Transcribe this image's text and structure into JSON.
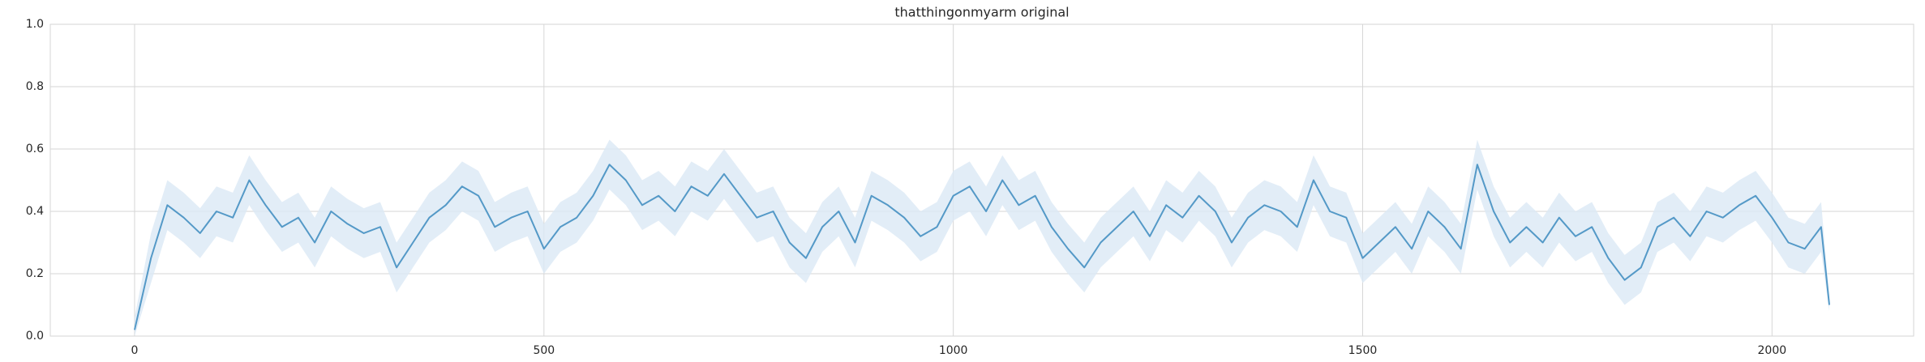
{
  "chart_data": {
    "type": "line",
    "title": "thatthingonmyarm original",
    "x": [
      0,
      20,
      40,
      60,
      80,
      100,
      120,
      140,
      160,
      180,
      200,
      220,
      240,
      260,
      280,
      300,
      320,
      340,
      360,
      380,
      400,
      420,
      440,
      460,
      480,
      500,
      520,
      540,
      560,
      580,
      600,
      620,
      640,
      660,
      680,
      700,
      720,
      740,
      760,
      780,
      800,
      820,
      840,
      860,
      880,
      900,
      920,
      940,
      960,
      980,
      1000,
      1020,
      1040,
      1060,
      1080,
      1100,
      1120,
      1140,
      1160,
      1180,
      1200,
      1220,
      1240,
      1260,
      1280,
      1300,
      1320,
      1340,
      1360,
      1380,
      1400,
      1420,
      1440,
      1460,
      1480,
      1500,
      1520,
      1540,
      1560,
      1580,
      1600,
      1620,
      1640,
      1660,
      1680,
      1700,
      1720,
      1740,
      1760,
      1780,
      1800,
      1820,
      1840,
      1860,
      1880,
      1900,
      1920,
      1940,
      1960,
      1980,
      2000,
      2020,
      2040,
      2060,
      2070
    ],
    "series": [
      {
        "color": "#5499c7",
        "band_color": "#dbe8f5",
        "values": [
          0.02,
          0.25,
          0.42,
          0.38,
          0.33,
          0.4,
          0.38,
          0.5,
          0.42,
          0.35,
          0.38,
          0.3,
          0.4,
          0.36,
          0.33,
          0.35,
          0.22,
          0.3,
          0.38,
          0.42,
          0.48,
          0.45,
          0.35,
          0.38,
          0.4,
          0.28,
          0.35,
          0.38,
          0.45,
          0.55,
          0.5,
          0.42,
          0.45,
          0.4,
          0.48,
          0.45,
          0.52,
          0.45,
          0.38,
          0.4,
          0.3,
          0.25,
          0.35,
          0.4,
          0.3,
          0.45,
          0.42,
          0.38,
          0.32,
          0.35,
          0.45,
          0.48,
          0.4,
          0.5,
          0.42,
          0.45,
          0.35,
          0.28,
          0.22,
          0.3,
          0.35,
          0.4,
          0.32,
          0.42,
          0.38,
          0.45,
          0.4,
          0.3,
          0.38,
          0.42,
          0.4,
          0.35,
          0.5,
          0.4,
          0.38,
          0.25,
          0.3,
          0.35,
          0.28,
          0.4,
          0.35,
          0.28,
          0.55,
          0.4,
          0.3,
          0.35,
          0.3,
          0.38,
          0.32,
          0.35,
          0.25,
          0.18,
          0.22,
          0.35,
          0.38,
          0.32,
          0.4,
          0.38,
          0.42,
          0.45,
          0.38,
          0.3,
          0.28,
          0.35,
          0.1
        ],
        "lower": [
          0.0,
          0.17,
          0.34,
          0.3,
          0.25,
          0.32,
          0.3,
          0.42,
          0.34,
          0.27,
          0.3,
          0.22,
          0.32,
          0.28,
          0.25,
          0.27,
          0.14,
          0.22,
          0.3,
          0.34,
          0.4,
          0.37,
          0.27,
          0.3,
          0.32,
          0.2,
          0.27,
          0.3,
          0.37,
          0.47,
          0.42,
          0.34,
          0.37,
          0.32,
          0.4,
          0.37,
          0.44,
          0.37,
          0.3,
          0.32,
          0.22,
          0.17,
          0.27,
          0.32,
          0.22,
          0.37,
          0.34,
          0.3,
          0.24,
          0.27,
          0.37,
          0.4,
          0.32,
          0.42,
          0.34,
          0.37,
          0.27,
          0.2,
          0.14,
          0.22,
          0.27,
          0.32,
          0.24,
          0.34,
          0.3,
          0.37,
          0.32,
          0.22,
          0.3,
          0.34,
          0.32,
          0.27,
          0.42,
          0.32,
          0.3,
          0.17,
          0.22,
          0.27,
          0.2,
          0.32,
          0.27,
          0.2,
          0.47,
          0.32,
          0.22,
          0.27,
          0.22,
          0.3,
          0.24,
          0.27,
          0.17,
          0.1,
          0.14,
          0.27,
          0.3,
          0.24,
          0.32,
          0.3,
          0.34,
          0.37,
          0.3,
          0.22,
          0.2,
          0.27,
          0.08
        ],
        "upper": [
          0.06,
          0.33,
          0.5,
          0.46,
          0.41,
          0.48,
          0.46,
          0.58,
          0.5,
          0.43,
          0.46,
          0.38,
          0.48,
          0.44,
          0.41,
          0.43,
          0.3,
          0.38,
          0.46,
          0.5,
          0.56,
          0.53,
          0.43,
          0.46,
          0.48,
          0.36,
          0.43,
          0.46,
          0.53,
          0.63,
          0.58,
          0.5,
          0.53,
          0.48,
          0.56,
          0.53,
          0.6,
          0.53,
          0.46,
          0.48,
          0.38,
          0.33,
          0.43,
          0.48,
          0.38,
          0.53,
          0.5,
          0.46,
          0.4,
          0.43,
          0.53,
          0.56,
          0.48,
          0.58,
          0.5,
          0.53,
          0.43,
          0.36,
          0.3,
          0.38,
          0.43,
          0.48,
          0.4,
          0.5,
          0.46,
          0.53,
          0.48,
          0.38,
          0.46,
          0.5,
          0.48,
          0.43,
          0.58,
          0.48,
          0.46,
          0.33,
          0.38,
          0.43,
          0.36,
          0.48,
          0.43,
          0.36,
          0.63,
          0.48,
          0.38,
          0.43,
          0.38,
          0.46,
          0.4,
          0.43,
          0.33,
          0.26,
          0.3,
          0.43,
          0.46,
          0.4,
          0.48,
          0.46,
          0.5,
          0.53,
          0.46,
          0.38,
          0.36,
          0.43,
          0.12
        ]
      }
    ],
    "xlim": [
      -103,
      2173
    ],
    "xticks": [
      0,
      500,
      1000,
      1500,
      2000
    ],
    "ylim": [
      0,
      1
    ],
    "yticks": [
      {
        "value": 0,
        "label": "0.0"
      },
      {
        "value": 0.2,
        "label": "0.2"
      },
      {
        "value": 0.4,
        "label": "0.4"
      },
      {
        "value": 0.6,
        "label": "0.6"
      },
      {
        "value": 0.8,
        "label": "0.8"
      },
      {
        "value": 1,
        "label": "1.0"
      }
    ],
    "grid": true
  }
}
